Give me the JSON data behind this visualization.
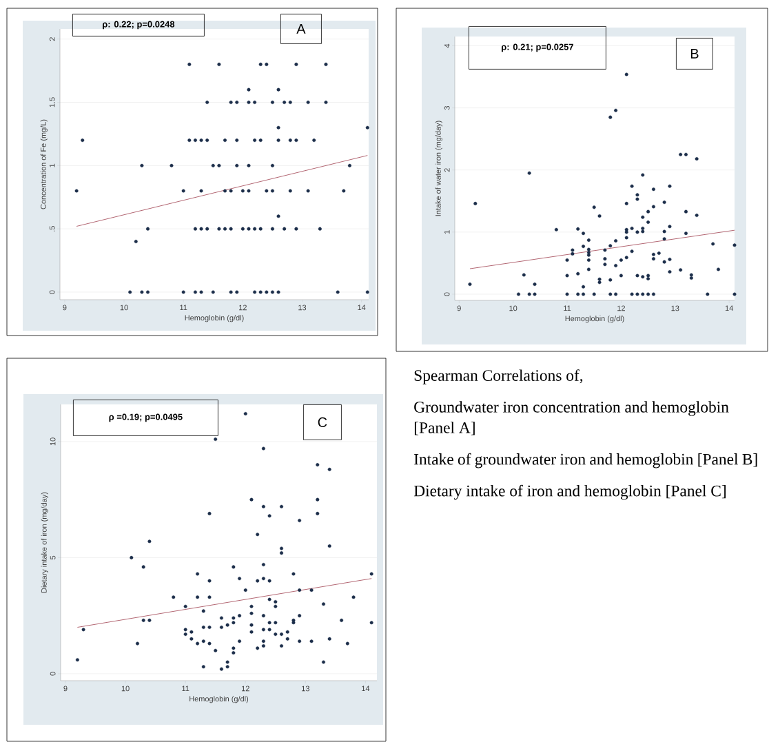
{
  "chart_data": [
    {
      "type": "scatter",
      "xlabel": "Hemoglobin (g/dl)",
      "ylabel": "Concentration of Fe (mg/L)",
      "xlim": [
        8.92,
        14.12
      ],
      "ylim": [
        -0.06,
        2.08
      ],
      "xticks": [
        9,
        10,
        11,
        12,
        13,
        14
      ],
      "yticks": [
        0,
        {
          "value": 0.5,
          "label": ".5"
        },
        1,
        1.5,
        2
      ],
      "grid": "y",
      "annotations": [
        "**ρ: 0.22; p=0.0248**",
        "A"
      ],
      "series": [
        {
          "type": "scatter",
          "marker": "circle",
          "color": "#1c2e4a",
          "x": [
            11.1,
            11.6,
            12.3,
            12.4,
            12.9,
            13.4,
            12.1,
            12.6,
            11.4,
            11.8,
            11.9,
            12.1,
            12.2,
            12.5,
            12.7,
            12.8,
            13.1,
            13.4,
            12.6,
            14.1,
            9.3,
            11.1,
            11.2,
            11.3,
            11.4,
            11.7,
            11.9,
            12.2,
            12.3,
            12.6,
            12.8,
            12.9,
            13.2,
            10.3,
            10.8,
            11.5,
            11.6,
            11.9,
            12.1,
            12.5,
            13.8,
            9.2,
            11.0,
            11.3,
            11.7,
            11.8,
            12.0,
            12.1,
            12.4,
            12.5,
            12.8,
            13.1,
            13.7,
            12.6,
            10.4,
            11.2,
            11.3,
            11.4,
            11.6,
            11.7,
            11.8,
            12.0,
            12.1,
            12.2,
            12.3,
            12.5,
            12.7,
            12.9,
            13.3,
            10.2,
            10.1,
            10.3,
            10.4,
            11.0,
            11.2,
            11.3,
            11.5,
            11.8,
            11.9,
            12.2,
            12.3,
            12.4,
            12.5,
            12.6,
            13.6,
            14.1
          ],
          "values": [
            1.8,
            1.8,
            1.8,
            1.8,
            1.8,
            1.8,
            1.6,
            1.6,
            1.5,
            1.5,
            1.5,
            1.5,
            1.5,
            1.5,
            1.5,
            1.5,
            1.5,
            1.5,
            1.3,
            1.3,
            1.2,
            1.2,
            1.2,
            1.2,
            1.2,
            1.2,
            1.2,
            1.2,
            1.2,
            1.2,
            1.2,
            1.2,
            1.2,
            1.0,
            1.0,
            1.0,
            1.0,
            1.0,
            1.0,
            1.0,
            1.0,
            0.8,
            0.8,
            0.8,
            0.8,
            0.8,
            0.8,
            0.8,
            0.8,
            0.8,
            0.8,
            0.8,
            0.8,
            0.6,
            0.5,
            0.5,
            0.5,
            0.5,
            0.5,
            0.5,
            0.5,
            0.5,
            0.5,
            0.5,
            0.5,
            0.5,
            0.5,
            0.5,
            0.5,
            0.4,
            0,
            0,
            0,
            0,
            0,
            0,
            0,
            0,
            0,
            0,
            0,
            0,
            0,
            0,
            0,
            0
          ]
        },
        {
          "type": "line",
          "marker": "none",
          "line_style": "solid",
          "color": "#a0404f",
          "x": [
            9.2,
            14.1
          ],
          "values": [
            0.52,
            1.08
          ]
        }
      ]
    },
    {
      "type": "scatter",
      "xlabel": "Hemoglobin (g/dl)",
      "ylabel": "Intake of water iron (mg/day)",
      "xlim": [
        8.92,
        14.1
      ],
      "ylim": [
        -0.1,
        4.15
      ],
      "xticks": [
        9,
        10,
        11,
        12,
        13,
        14
      ],
      "yticks": [
        0,
        1,
        2,
        3,
        4
      ],
      "grid": "y",
      "annotations": [
        "**ρ: 0.21; p=0.0257**",
        "B"
      ],
      "series": [
        {
          "type": "scatter",
          "marker": "circle",
          "color": "#1c2e4a",
          "x": [
            12.1,
            11.8,
            11.9,
            13.1,
            13.2,
            13.4,
            10.3,
            12.4,
            12.2,
            12.9,
            12.6,
            12.3,
            12.3,
            9.3,
            12.1,
            12.8,
            11.5,
            12.6,
            11.6,
            13.2,
            13.4,
            12.5,
            12.4,
            12.5,
            10.8,
            11.2,
            11.3,
            12.1,
            12.1,
            12.2,
            12.3,
            12.4,
            12.4,
            12.8,
            12.9,
            13.2,
            12.1,
            12.8,
            11.4,
            11.9,
            13.7,
            14.1,
            11.8,
            11.3,
            11.1,
            11.1,
            11.4,
            11.4,
            11.4,
            11.7,
            12.2,
            12.7,
            12.6,
            12.6,
            11.0,
            11.4,
            11.7,
            11.7,
            12.0,
            12.1,
            12.9,
            12.8,
            11.9,
            11.4,
            13.1,
            13.8,
            12.9,
            10.2,
            11.2,
            11.0,
            12.0,
            12.3,
            12.4,
            12.5,
            12.5,
            13.3,
            13.3,
            11.6,
            11.6,
            11.8,
            9.2,
            10.4,
            11.3,
            10.1,
            10.3,
            10.4,
            11.0,
            11.2,
            11.3,
            11.5,
            11.8,
            11.9,
            12.2,
            12.3,
            12.4,
            12.5,
            12.6,
            13.6,
            14.1
          ],
          "values": [
            3.54,
            2.85,
            2.96,
            2.25,
            2.25,
            2.18,
            1.95,
            1.92,
            1.74,
            1.74,
            1.69,
            1.6,
            1.53,
            1.46,
            1.46,
            1.48,
            1.4,
            1.41,
            1.26,
            1.33,
            1.27,
            1.33,
            1.24,
            1.16,
            1.04,
            1.05,
            0.98,
            1.04,
            1.0,
            1.06,
            1.0,
            1.06,
            1.01,
            1.01,
            1.09,
            0.98,
            0.91,
            0.89,
            0.87,
            0.86,
            0.81,
            0.79,
            0.78,
            0.77,
            0.71,
            0.65,
            0.72,
            0.67,
            0.63,
            0.71,
            0.69,
            0.66,
            0.64,
            0.57,
            0.55,
            0.55,
            0.57,
            0.48,
            0.55,
            0.59,
            0.56,
            0.52,
            0.46,
            0.4,
            0.39,
            0.4,
            0.36,
            0.31,
            0.33,
            0.3,
            0.3,
            0.3,
            0.28,
            0.3,
            0.25,
            0.31,
            0.26,
            0.24,
            0.19,
            0.23,
            0.16,
            0.16,
            0.12,
            0,
            0,
            0,
            0,
            0,
            0,
            0,
            0,
            0,
            0,
            0,
            0,
            0,
            0,
            0,
            0
          ]
        },
        {
          "type": "line",
          "marker": "none",
          "line_style": "solid",
          "color": "#a0404f",
          "x": [
            9.2,
            14.1
          ],
          "values": [
            0.41,
            1.03
          ]
        }
      ]
    },
    {
      "type": "scatter",
      "xlabel": "Hemoglobin (g/dl)",
      "ylabel": "Dietary intake of iron (mg/day)",
      "xlim": [
        8.92,
        14.19
      ],
      "ylim": [
        -0.3,
        11.6
      ],
      "xticks": [
        9,
        10,
        11,
        12,
        13,
        14
      ],
      "yticks": [
        0,
        5,
        10
      ],
      "grid": "y",
      "annotations": [
        "**ρ =0.19; p=0.0495**",
        "C"
      ],
      "series": [
        {
          "type": "scatter",
          "marker": "circle",
          "color": "#1c2e4a",
          "x": [
            12.0,
            11.5,
            12.3,
            13.2,
            13.4,
            12.1,
            13.2,
            12.3,
            12.6,
            13.2,
            11.4,
            12.4,
            12.9,
            12.2,
            10.4,
            12.6,
            12.6,
            13.4,
            10.1,
            10.3,
            11.8,
            12.3,
            11.2,
            12.8,
            14.1,
            11.4,
            11.9,
            12.2,
            12.3,
            12.4,
            12.0,
            12.9,
            13.1,
            10.8,
            11.2,
            11.4,
            13.8,
            12.4,
            12.5,
            12.5,
            11.0,
            12.1,
            13.3,
            11.3,
            12.1,
            11.9,
            12.3,
            12.9,
            11.6,
            11.8,
            10.3,
            10.4,
            12.8,
            12.8,
            13.6,
            14.1,
            11.7,
            11.8,
            12.4,
            12.4,
            12.5,
            12.1,
            12.1,
            11.3,
            11.4,
            11.6,
            12.3,
            9.3,
            11.0,
            11.0,
            11.1,
            12.5,
            12.6,
            12.7,
            12.7,
            11.1,
            11.9,
            12.9,
            13.1,
            13.4,
            10.2,
            11.2,
            11.3,
            11.4,
            12.3,
            12.3,
            13.7,
            12.6,
            11.5,
            12.2,
            11.8,
            11.8,
            9.2,
            13.3,
            11.7,
            11.7,
            11.3,
            11.6
          ],
          "values": [
            11.2,
            10.1,
            9.7,
            9.0,
            8.8,
            7.5,
            7.5,
            7.2,
            7.2,
            6.9,
            6.9,
            6.8,
            6.6,
            6.0,
            5.7,
            5.4,
            5.2,
            5.5,
            5.0,
            4.6,
            4.6,
            4.7,
            4.3,
            4.3,
            4.3,
            4.0,
            4.1,
            4.0,
            4.1,
            4.0,
            3.6,
            3.6,
            3.6,
            3.3,
            3.3,
            3.3,
            3.3,
            3.2,
            3.1,
            2.9,
            2.9,
            2.9,
            3.0,
            2.7,
            2.6,
            2.5,
            2.5,
            2.5,
            2.4,
            2.4,
            2.3,
            2.3,
            2.3,
            2.2,
            2.3,
            2.2,
            2.1,
            2.2,
            2.2,
            1.9,
            2.2,
            2.1,
            1.8,
            2.0,
            2.0,
            2.0,
            1.9,
            1.9,
            1.9,
            1.7,
            1.8,
            1.7,
            1.7,
            1.8,
            1.5,
            1.5,
            1.4,
            1.4,
            1.4,
            1.5,
            1.3,
            1.3,
            1.4,
            1.3,
            1.4,
            1.2,
            1.3,
            1.2,
            1.0,
            1.1,
            1.1,
            0.9,
            0.6,
            0.5,
            0.5,
            0.3,
            0.3,
            0.2
          ]
        },
        {
          "type": "line",
          "marker": "none",
          "line_style": "solid",
          "color": "#a0404f",
          "x": [
            9.2,
            14.1
          ],
          "values": [
            2.0,
            4.1
          ]
        }
      ]
    },
    {
      "type": "other",
      "annotations": [
        "Spearman Correlations of,",
        "Groundwater iron concentration and hemoglobin [Panel A]",
        "Intake of groundwater iron and hemoglobin [Panel B]",
        "Dietary intake of iron and hemoglobin [Panel C]"
      ]
    }
  ]
}
